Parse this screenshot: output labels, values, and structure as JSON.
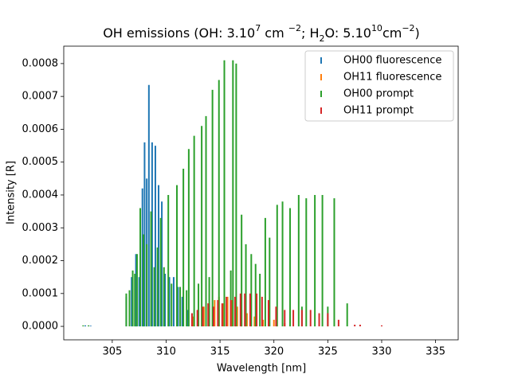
{
  "chart_data": {
    "type": "stem",
    "title": [
      "OH emissions (OH: 3.10",
      "7",
      " cm ",
      "−2",
      "; H",
      "2",
      "O: 5.10",
      "10",
      "cm",
      "−2",
      ")"
    ],
    "x_label": "Wavelength [nm]",
    "y_label": "Intensity [R]",
    "xlim": [
      300.5,
      337.1
    ],
    "ylim": [
      -4.1e-05,
      0.000853
    ],
    "xticks": [
      305,
      310,
      315,
      320,
      325,
      330,
      335
    ],
    "yticks": [
      {
        "value": 0,
        "label": "0.0000"
      },
      {
        "value": 0.0001,
        "label": "0.0001"
      },
      {
        "value": 0.0002,
        "label": "0.0002"
      },
      {
        "value": 0.0003,
        "label": "0.0003"
      },
      {
        "value": 0.0004,
        "label": "0.0004"
      },
      {
        "value": 0.0005,
        "label": "0.0005"
      },
      {
        "value": 0.0006,
        "label": "0.0006"
      },
      {
        "value": 0.0007,
        "label": "0.0007"
      },
      {
        "value": 0.0008,
        "label": "0.0008"
      }
    ],
    "legend": "upper right",
    "series": [
      {
        "name": "OH00 fluorescence",
        "color": "#1f77b4",
        "x": [
          302.5,
          303.0,
          306.3,
          306.8,
          307.2,
          307.5,
          307.8,
          308.0,
          308.2,
          308.4,
          308.7,
          309.0,
          309.3,
          309.6,
          309.9,
          310.3,
          310.7,
          311.1,
          311.5,
          312.0
        ],
        "values": [
          3e-06,
          2e-06,
          9e-05,
          0.00015,
          0.00022,
          0.00015,
          0.00042,
          0.00056,
          0.00045,
          0.000735,
          0.00056,
          0.00055,
          0.00043,
          0.00038,
          0.00016,
          0.00015,
          0.00015,
          0.00012,
          9e-05,
          5e-05
        ]
      },
      {
        "name": "OH11 fluorescence",
        "color": "#ff7f0e",
        "x": [
          312.5,
          313.0,
          313.5,
          314.0,
          314.5,
          314.9,
          315.3,
          315.7,
          316.1,
          316.6,
          317.0,
          317.5,
          318.2,
          319.0,
          320.0,
          321.0
        ],
        "values": [
          3e-05,
          5e-05,
          6e-05,
          7e-05,
          8e-05,
          9e-05,
          7e-05,
          9e-05,
          8e-05,
          6e-05,
          5e-05,
          4e-05,
          3e-05,
          2e-05,
          2e-05,
          1e-05
        ]
      },
      {
        "name": "OH00 prompt",
        "color": "#2ca02c",
        "x": [
          302.3,
          302.8,
          306.3,
          306.6,
          306.9,
          307.1,
          307.3,
          307.6,
          307.9,
          308.2,
          308.6,
          308.9,
          309.2,
          309.5,
          309.8,
          310.2,
          310.5,
          311.0,
          311.3,
          311.6,
          311.9,
          312.1,
          312.6,
          313.0,
          313.3,
          313.7,
          314.0,
          314.3,
          314.9,
          315.4,
          316.0,
          316.2,
          316.5,
          317.0,
          317.4,
          317.9,
          318.3,
          318.7,
          319.2,
          319.6,
          320.3,
          320.8,
          321.5,
          322.3,
          322.6,
          323.0,
          323.8,
          324.5,
          325.0,
          325.6,
          326.8
        ],
        "values": [
          3e-06,
          3e-06,
          0.0001,
          0.00011,
          0.00017,
          0.00016,
          0.00022,
          0.00036,
          0.00028,
          0.00025,
          0.00035,
          0.00018,
          0.00024,
          0.00033,
          0.00018,
          0.0004,
          0.00013,
          0.00043,
          0.00012,
          0.00048,
          0.00011,
          0.00054,
          0.00058,
          0.00013,
          0.00061,
          0.00064,
          0.00015,
          0.00072,
          0.00075,
          0.00081,
          0.00017,
          0.00081,
          0.0008,
          0.00034,
          0.00025,
          0.00022,
          0.00019,
          0.00016,
          0.00033,
          0.00027,
          0.00037,
          0.00038,
          0.00036,
          0.0004,
          6e-05,
          0.00039,
          0.0004,
          0.0004,
          6e-05,
          0.00039,
          7e-05
        ]
      },
      {
        "name": "OH11 prompt",
        "color": "#d62728",
        "x": [
          312.4,
          312.9,
          313.4,
          313.9,
          314.4,
          314.8,
          315.2,
          315.6,
          316.0,
          316.4,
          316.9,
          317.3,
          317.8,
          318.4,
          318.9,
          319.5,
          320.2,
          321.0,
          321.8,
          322.6,
          323.4,
          324.2,
          325.0,
          326.0,
          327.5,
          328.0,
          330.0
        ],
        "values": [
          4e-05,
          5e-05,
          6e-05,
          7e-05,
          6e-05,
          8e-05,
          7e-05,
          9e-05,
          8e-05,
          9e-05,
          0.0001,
          0.0001,
          0.0001,
          0.0001,
          9e-05,
          8e-05,
          6e-05,
          5e-05,
          5e-05,
          5e-05,
          5e-05,
          4e-05,
          4e-05,
          2e-05,
          5e-06,
          5e-06,
          3e-06
        ]
      }
    ]
  }
}
